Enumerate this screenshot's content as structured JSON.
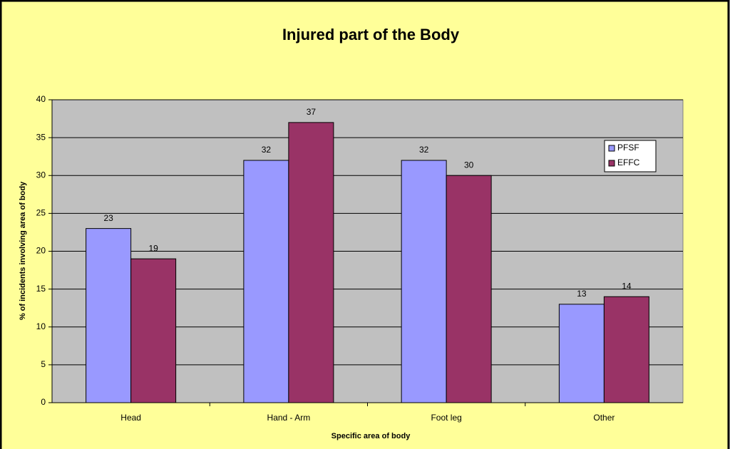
{
  "chart_data": {
    "type": "bar",
    "title": "Injured part of the Body",
    "x_label": "Specific area of body",
    "y_label": "% of incidents involving area of body",
    "categories": [
      "Head",
      "Hand - Arm",
      "Foot leg",
      "Other"
    ],
    "series": [
      {
        "name": "PFSF",
        "color": "#9999ff",
        "values": [
          23,
          32,
          32,
          13
        ]
      },
      {
        "name": "EFFC",
        "color": "#993366",
        "values": [
          19,
          37,
          30,
          14
        ]
      }
    ],
    "ylim": [
      0,
      40
    ],
    "yticks": [
      0,
      5,
      10,
      15,
      20,
      25,
      30,
      35,
      40
    ],
    "grid": true,
    "legend": "right"
  }
}
